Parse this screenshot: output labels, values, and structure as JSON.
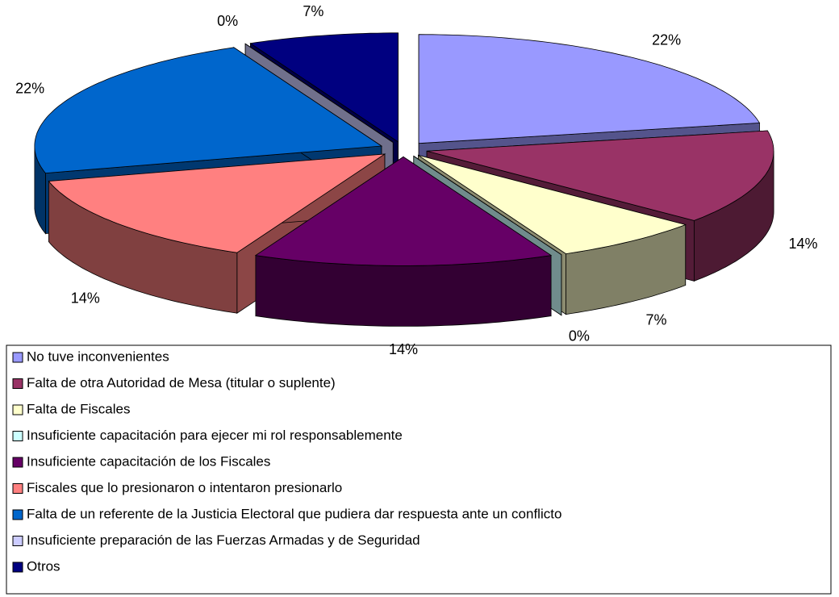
{
  "chart_data": {
    "type": "pie",
    "categories": [
      "No tuve inconvenientes",
      "Falta de otra Autoridad de Mesa (titular o suplente)",
      "Falta de Fiscales",
      "Insuficiente capacitación para ejecer mi rol responsablemente",
      "Insuficiente capacitación de los Fiscales",
      "Fiscales que lo presionaron o intentaron presionarlo",
      "Falta de un referente de la Justicia Electoral que pudiera dar respuesta ante un conflicto",
      "Insuficiente preparación de las Fuerzas Armadas y de Seguridad",
      "Otros"
    ],
    "values": [
      22,
      14,
      7,
      0,
      14,
      14,
      22,
      0,
      7
    ],
    "value_labels": [
      "22%",
      "14%",
      "7%",
      "0%",
      "14%",
      "14%",
      "22%",
      "0%",
      "7%"
    ],
    "colors": [
      "#9999ff",
      "#993366",
      "#ffffcc",
      "#ccffff",
      "#660066",
      "#ff8080",
      "#0066cc",
      "#ccccff",
      "#000080"
    ]
  }
}
